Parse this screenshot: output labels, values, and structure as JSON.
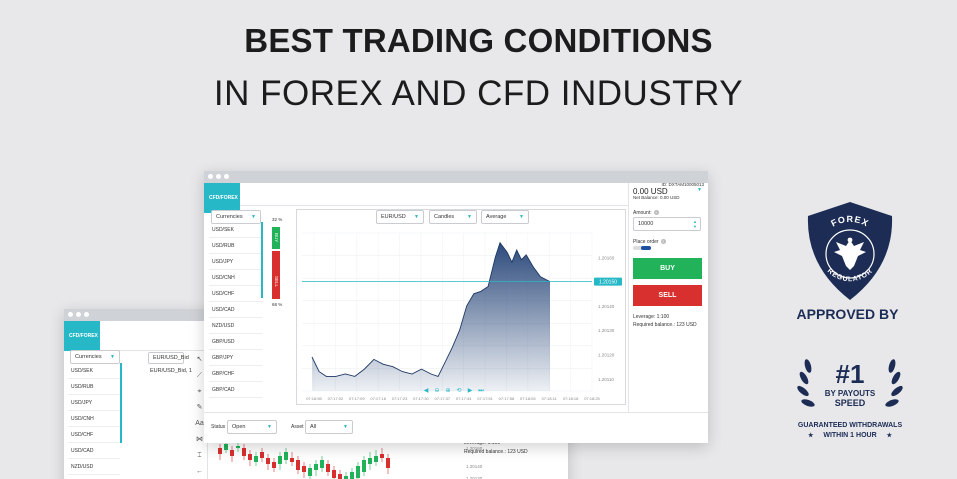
{
  "headline": {
    "line1": "BEST TRADING CONDITIONS",
    "line2": "IN FOREX AND CFD INDUSTRY"
  },
  "back_window": {
    "brand": "CFD/FOREX",
    "currencies_select": "Currencies",
    "chart_symbol": "EUR/USD_Bid",
    "chart_title": "EUR/USD_Bid, 1",
    "pairs": [
      "USD/SEK",
      "USD/RUB",
      "USD/JPY",
      "USD/CNH",
      "USD/CHF",
      "USD/CAD",
      "NZD/USD"
    ],
    "tools": [
      "↖",
      "⟋",
      "⌖",
      "✎",
      "Aa",
      "⋈",
      "⌶",
      "←",
      "🔍"
    ],
    "price_ticks": [
      "1.20160",
      "1.20140",
      "1.20130"
    ],
    "leverage": "Leverage: 1:100",
    "required_balance": "Required balance.: 123 USD"
  },
  "front_window": {
    "brand": "CFD/FOREX",
    "currencies_select": "Currencies",
    "pairs": [
      "USD/SEK",
      "USD/RUB",
      "USD/JPY",
      "USD/CNH",
      "USD/CHF",
      "USD/CAD",
      "NZD/USD",
      "GBP/USD",
      "GBP/JPY",
      "GBP/CHF",
      "GBP/CAD"
    ],
    "symbol_select": "EUR/USD",
    "chart_type_select": "Candles",
    "indicator_select": "Average",
    "buy_pct": "32 %",
    "sell_pct": "68 %",
    "buy_side_label": "BUY",
    "sell_side_label": "SELL",
    "current_price": "1.20150",
    "price_ticks": [
      "1.20160",
      "1.20150",
      "1.20140",
      "1.20130",
      "1.20120",
      "1.20110"
    ],
    "time_ticks": [
      "07:16:55",
      "07:17:02",
      "07:17:09",
      "07:17:16",
      "07:17:23",
      "07:17:30",
      "07:17:37",
      "07:17:44",
      "07:17:51",
      "07:17:58",
      "07:18:05",
      "07:18:11",
      "07:18:18",
      "07:18:25"
    ],
    "status_label": "Status",
    "status_value": "Open",
    "asset_label": "Asset",
    "asset_value": "All",
    "account_id": "ID: DXTAM10005013",
    "balance": "0.00 USD",
    "net_balance": "Net Balance: 0.00 USD",
    "amount_label": "Amount:",
    "amount_value": "10000",
    "place_order_label": "Place order",
    "buy_button": "BUY",
    "sell_button": "SELL",
    "leverage": "Leverage: 1:100",
    "required_balance": "Required balance.: 123 USD"
  },
  "chart_data": {
    "type": "area",
    "x": [
      "07:16:55",
      "07:17:02",
      "07:17:09",
      "07:17:16",
      "07:17:23",
      "07:17:30",
      "07:17:37",
      "07:17:44",
      "07:17:51",
      "07:17:58",
      "07:18:05",
      "07:18:11"
    ],
    "values": [
      1.20119,
      1.20111,
      1.20112,
      1.20118,
      1.20114,
      1.20113,
      1.20111,
      1.20118,
      1.20145,
      1.20147,
      1.20166,
      1.2015
    ],
    "ylim": [
      1.20105,
      1.2017
    ],
    "current_price": 1.2015,
    "fill_color": "#2c4a7c",
    "grid": true
  },
  "badges": {
    "regulator_top": "FOREX",
    "regulator_bottom": "REGULATOR",
    "approved_by": "APPROVED BY",
    "rank": "#1",
    "rank_line1": "BY PAYOUTS",
    "rank_line2": "SPEED",
    "guarantee_line1": "GUARANTEED WITHDRAWALS",
    "guarantee_line2": "WITHIN 1 HOUR"
  },
  "colors": {
    "brand": "#26b8c6",
    "buy": "#22b35a",
    "sell": "#d8302f",
    "badge_navy": "#1c2c55"
  }
}
